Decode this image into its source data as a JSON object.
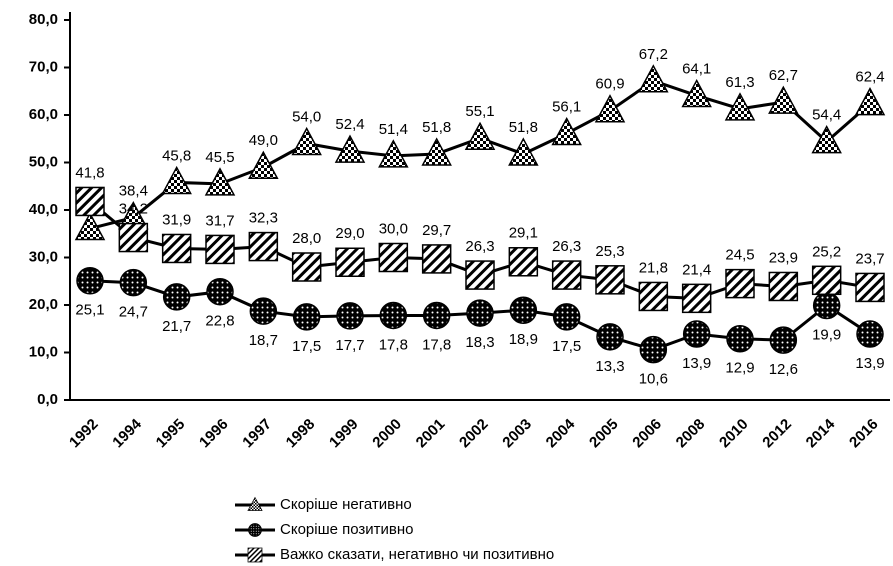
{
  "chart_data": {
    "type": "line",
    "categories": [
      "1992",
      "1994",
      "1995",
      "1996",
      "1997",
      "1998",
      "1999",
      "2000",
      "2001",
      "2002",
      "2003",
      "2004",
      "2005",
      "2006",
      "2008",
      "2010",
      "2012",
      "2014",
      "2016"
    ],
    "ylim": [
      0,
      80
    ],
    "yticks": [
      {
        "value": 0,
        "label": "0,0"
      },
      {
        "value": 10,
        "label": "10,0"
      },
      {
        "value": 20,
        "label": "20,0"
      },
      {
        "value": 30,
        "label": "30,0"
      },
      {
        "value": 40,
        "label": "40,0"
      },
      {
        "value": 50,
        "label": "50,0"
      },
      {
        "value": 60,
        "label": "60,0"
      },
      {
        "value": 70,
        "label": "70,0"
      },
      {
        "value": 80,
        "label": "80,0"
      }
    ],
    "series": [
      {
        "name": "Скоріше негативно",
        "color": "#000000",
        "marker": "triangle",
        "values": [
          36.1,
          38.4,
          45.8,
          45.5,
          49.0,
          54.0,
          52.4,
          51.4,
          51.8,
          55.1,
          51.8,
          56.1,
          60.9,
          67.2,
          64.1,
          61.3,
          62.7,
          54.4,
          62.4
        ],
        "value_labels": [
          "36,1",
          "38,4",
          "45,8",
          "45,5",
          "49,0",
          "54,0",
          "52,4",
          "51,4",
          "51,8",
          "55,1",
          "51,8",
          "56,1",
          "60,9",
          "67,2",
          "64,1",
          "61,3",
          "62,7",
          "54,4",
          "62,4"
        ]
      },
      {
        "name": "Скоріше позитивно",
        "color": "#000000",
        "marker": "circle",
        "values": [
          25.1,
          24.7,
          21.7,
          22.8,
          18.7,
          17.5,
          17.7,
          17.8,
          17.8,
          18.3,
          18.9,
          17.5,
          13.3,
          10.6,
          13.9,
          12.9,
          12.6,
          19.9,
          13.9
        ],
        "value_labels": [
          "25,1",
          "24,7",
          "21,7",
          "22,8",
          "18,7",
          "17,5",
          "17,7",
          "17,8",
          "17,8",
          "18,3",
          "18,9",
          "17,5",
          "13,3",
          "10,6",
          "13,9",
          "12,9",
          "12,6",
          "19,9",
          "13,9"
        ]
      },
      {
        "name": "Важко сказати, негативно чи позитивно",
        "color": "#000000",
        "marker": "square",
        "values": [
          41.8,
          34.2,
          31.9,
          31.7,
          32.3,
          28.0,
          29.0,
          30.0,
          29.7,
          26.3,
          29.1,
          26.3,
          25.3,
          21.8,
          21.4,
          24.5,
          23.9,
          25.2,
          23.7
        ],
        "value_labels": [
          "41,8",
          "34,2",
          "31,9",
          "31,7",
          "32,3",
          "28,0",
          "29,0",
          "30,0",
          "29,7",
          "26,3",
          "29,1",
          "26,3",
          "25,3",
          "21,8",
          "21,4",
          "24,5",
          "23,9",
          "25,2",
          "23,7"
        ]
      }
    ]
  }
}
